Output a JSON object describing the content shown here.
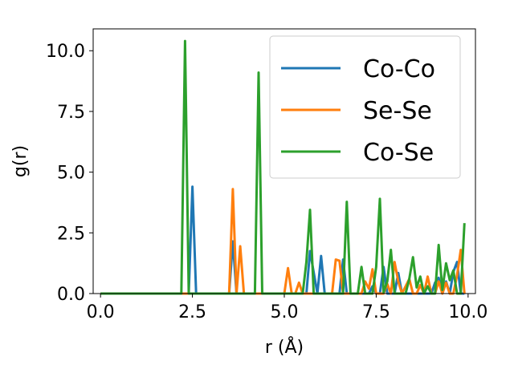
{
  "chart_data": {
    "type": "line",
    "xlabel": "r (Å)",
    "ylabel": "g(r)",
    "xlim": [
      -0.2,
      10.2
    ],
    "ylim": [
      0,
      10.9
    ],
    "grid": false,
    "legend_position": "top-right",
    "x_ticks": [
      0.0,
      2.5,
      5.0,
      7.5,
      10.0
    ],
    "x_tick_labels": [
      "0.0",
      "2.5",
      "5.0",
      "7.5",
      "10.0"
    ],
    "y_ticks": [
      0.0,
      2.5,
      5.0,
      7.5,
      10.0
    ],
    "y_tick_labels": [
      "0.0",
      "2.5",
      "5.0",
      "7.5",
      "10.0"
    ],
    "series": [
      {
        "name": "Co-Co",
        "color": "#1f77b4",
        "x": [
          0,
          2.3,
          2.4,
          2.5,
          2.6,
          3.5,
          3.6,
          3.7,
          5.0,
          5.2,
          5.4,
          5.6,
          5.7,
          5.9,
          6.0,
          6.1,
          6.5,
          6.6,
          6.7,
          6.8,
          7.3,
          7.4,
          7.5,
          7.6,
          7.7,
          7.8,
          7.9,
          8.0,
          8.1,
          8.2,
          8.4,
          8.6,
          8.8,
          9.0,
          9.1,
          9.2,
          9.3,
          9.4,
          9.5,
          9.6,
          9.7,
          9.8,
          9.9
        ],
        "y": [
          0,
          0,
          0,
          4.4,
          0,
          0,
          2.15,
          0,
          0,
          0,
          0,
          0,
          1.75,
          0,
          1.55,
          0,
          0,
          1.4,
          0,
          0,
          0,
          0.3,
          0,
          0,
          1.1,
          0,
          0,
          0,
          0.85,
          0,
          0,
          0,
          0,
          0,
          0.45,
          0.65,
          0,
          0.5,
          0,
          0.9,
          1.3,
          0,
          0
        ]
      },
      {
        "name": "Se-Se",
        "color": "#ff7f0e",
        "x": [
          0,
          3.4,
          3.5,
          3.6,
          3.7,
          3.8,
          3.9,
          5.0,
          5.1,
          5.2,
          5.3,
          5.4,
          5.5,
          5.6,
          6.2,
          6.3,
          6.4,
          6.5,
          6.6,
          6.7,
          7.0,
          7.1,
          7.2,
          7.3,
          7.4,
          7.5,
          7.6,
          7.7,
          7.8,
          7.9,
          8.0,
          8.1,
          8.2,
          8.4,
          8.5,
          8.6,
          8.7,
          8.8,
          8.9,
          9.0,
          9.1,
          9.2,
          9.3,
          9.4,
          9.5,
          9.6,
          9.7,
          9.8,
          9.9
        ],
        "y": [
          0,
          0,
          0,
          4.3,
          0,
          1.95,
          0,
          0,
          1.05,
          0,
          0,
          0.45,
          0,
          0,
          0,
          0,
          1.4,
          1.35,
          0,
          0,
          0,
          0,
          0.5,
          0.2,
          1.0,
          0,
          0,
          0,
          0.4,
          0,
          1.3,
          0.5,
          0,
          0.6,
          0,
          0,
          0.35,
          0,
          0.7,
          0,
          0,
          0.5,
          0,
          0.45,
          0,
          0,
          0.75,
          1.8,
          0
        ]
      },
      {
        "name": "Co-Se",
        "color": "#2ca02c",
        "x": [
          0,
          2.1,
          2.2,
          2.3,
          2.4,
          2.5,
          4.1,
          4.2,
          4.3,
          4.4,
          4.5,
          5.5,
          5.6,
          5.7,
          5.8,
          6.5,
          6.6,
          6.7,
          6.8,
          7.0,
          7.1,
          7.2,
          7.4,
          7.5,
          7.6,
          7.7,
          7.8,
          7.9,
          8.0,
          8.3,
          8.4,
          8.5,
          8.6,
          8.7,
          8.8,
          8.9,
          9.0,
          9.1,
          9.2,
          9.3,
          9.4,
          9.5,
          9.6,
          9.7,
          9.8,
          9.9
        ],
        "y": [
          0,
          0,
          0,
          10.4,
          0,
          0,
          0,
          0,
          9.1,
          0,
          0,
          0,
          1.3,
          3.45,
          0,
          0,
          0,
          3.78,
          0,
          0,
          1.1,
          0,
          0,
          1.1,
          3.9,
          0.05,
          0.5,
          1.8,
          0,
          0,
          0.6,
          1.5,
          0.25,
          0.7,
          0,
          0.3,
          0,
          0,
          2.0,
          0.15,
          1.25,
          0.55,
          0.95,
          0,
          0,
          2.9
        ]
      }
    ]
  }
}
